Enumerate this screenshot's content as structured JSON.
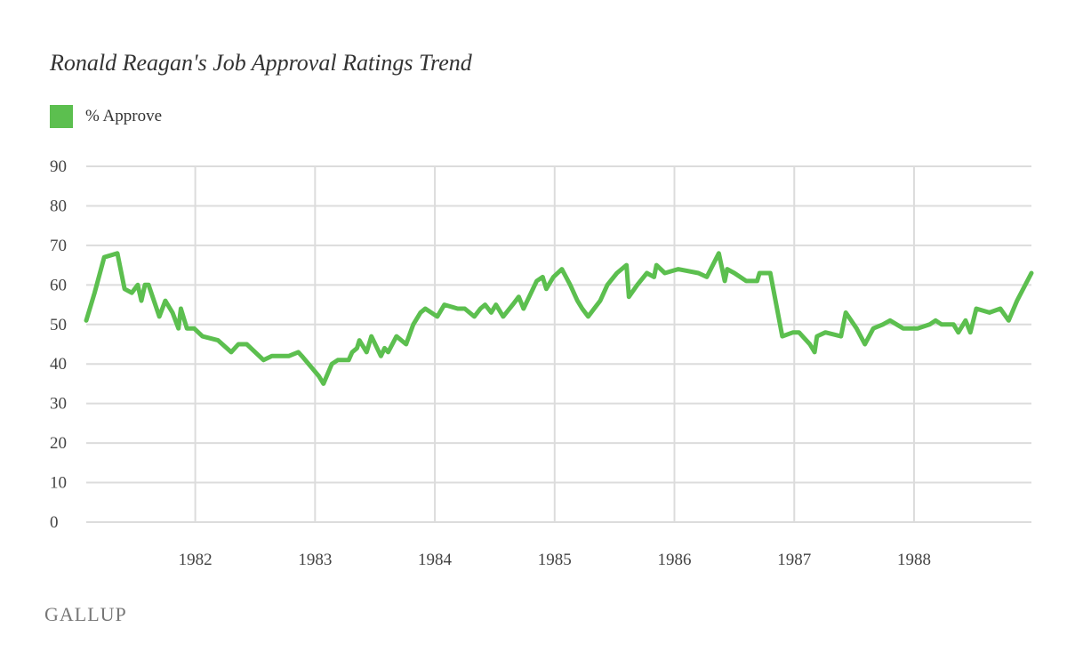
{
  "chart_data": {
    "type": "line",
    "title": "Ronald Reagan's Job Approval Ratings Trend",
    "xlabel": "",
    "ylabel": "",
    "xlim": [
      1981.09,
      1988.98
    ],
    "ylim": [
      0,
      90
    ],
    "yticks": [
      0,
      10,
      20,
      30,
      40,
      50,
      60,
      70,
      80,
      90
    ],
    "xticks": [
      1982,
      1983,
      1984,
      1985,
      1986,
      1987,
      1988
    ],
    "grid": true,
    "legend": "top-left",
    "series": [
      {
        "name": "% Approve",
        "color": "#5cbf4f",
        "x": [
          1981.09,
          1981.16,
          1981.24,
          1981.35,
          1981.41,
          1981.47,
          1981.52,
          1981.55,
          1981.58,
          1981.61,
          1981.7,
          1981.75,
          1981.81,
          1981.86,
          1981.88,
          1981.93,
          1981.99,
          1982.06,
          1982.19,
          1982.3,
          1982.36,
          1982.43,
          1982.57,
          1982.64,
          1982.78,
          1982.86,
          1982.89,
          1983.03,
          1983.07,
          1983.14,
          1983.19,
          1983.28,
          1983.31,
          1983.35,
          1983.37,
          1983.43,
          1983.47,
          1983.55,
          1983.58,
          1983.61,
          1983.68,
          1983.76,
          1983.82,
          1983.88,
          1983.92,
          1984.02,
          1984.08,
          1984.19,
          1984.25,
          1984.33,
          1984.38,
          1984.42,
          1984.47,
          1984.51,
          1984.57,
          1984.65,
          1984.7,
          1984.74,
          1984.85,
          1984.9,
          1984.93,
          1984.99,
          1985.06,
          1985.13,
          1985.19,
          1985.23,
          1985.28,
          1985.33,
          1985.38,
          1985.44,
          1985.52,
          1985.6,
          1985.62,
          1985.69,
          1985.77,
          1985.83,
          1985.85,
          1985.92,
          1986.03,
          1986.2,
          1986.27,
          1986.37,
          1986.42,
          1986.44,
          1986.5,
          1986.6,
          1986.69,
          1986.71,
          1986.8,
          1986.9,
          1986.99,
          1987.04,
          1987.13,
          1987.17,
          1987.19,
          1987.26,
          1987.39,
          1987.43,
          1987.52,
          1987.59,
          1987.66,
          1987.74,
          1987.8,
          1987.91,
          1988.03,
          1988.13,
          1988.18,
          1988.23,
          1988.33,
          1988.37,
          1988.43,
          1988.47,
          1988.52,
          1988.63,
          1988.72,
          1988.79,
          1988.86,
          1988.98
        ],
        "values": [
          51,
          58,
          67,
          68,
          59,
          58,
          60,
          56,
          60,
          60,
          52,
          56,
          53,
          49,
          54,
          49,
          49,
          47,
          46,
          43,
          45,
          45,
          41,
          42,
          42,
          43,
          42,
          37,
          35,
          40,
          41,
          41,
          43,
          44,
          46,
          43,
          47,
          42,
          44,
          43,
          47,
          45,
          50,
          53,
          54,
          52,
          55,
          54,
          54,
          52,
          54,
          55,
          53,
          55,
          52,
          55,
          57,
          54,
          61,
          62,
          59,
          62,
          64,
          60,
          56,
          54,
          52,
          54,
          56,
          60,
          63,
          65,
          57,
          60,
          63,
          62,
          65,
          63,
          64,
          63,
          62,
          68,
          61,
          64,
          63,
          61,
          61,
          63,
          63,
          47,
          48,
          48,
          45,
          43,
          47,
          48,
          47,
          53,
          49,
          45,
          49,
          50,
          51,
          49,
          49,
          50,
          51,
          50,
          50,
          48,
          51,
          48,
          54,
          53,
          54,
          51,
          56,
          63
        ]
      }
    ]
  },
  "logo": "GALLUP"
}
